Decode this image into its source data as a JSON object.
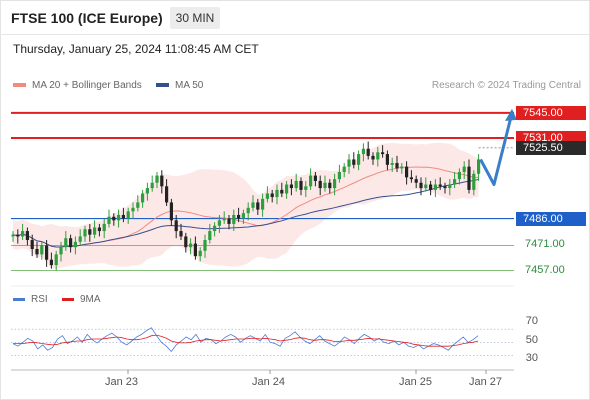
{
  "header": {
    "title": "FTSE 100 (ICE Europe)",
    "timeframe": "30 MIN",
    "datetime": "Thursday, January 25, 2024 11:08:45 AM CET"
  },
  "legend": {
    "ma_bb": "MA 20 + Bollinger Bands",
    "ma50": "MA 50",
    "credit": "Research © 2024 Trading Central"
  },
  "colors": {
    "up": "#2e9e3e",
    "down": "#222222",
    "resistance": "#e02020",
    "support": "#1f5fc8",
    "target": "#3b7ec8",
    "green_level": "#5aaa4a",
    "bb_fill": "#fde4e4",
    "ma20": "#f28a82",
    "ma50": "#34508f",
    "rsi": "#4a7cd6",
    "rsi_ma": "#e02020"
  },
  "chart_data": [
    {
      "type": "candlestick",
      "x_labels": [
        "Jan 23",
        "Jan 24",
        "Jan 25",
        "Jan 27"
      ],
      "ylim": [
        7450,
        7555
      ],
      "series": [
        {
          "name": "MA 20 + Bollinger Bands"
        },
        {
          "name": "MA 50"
        }
      ],
      "closes": [
        7477,
        7476,
        7479,
        7474,
        7469,
        7466,
        7471,
        7463,
        7460,
        7466,
        7470,
        7475,
        7470,
        7473,
        7476,
        7480,
        7477,
        7481,
        7479,
        7483,
        7487,
        7485,
        7488,
        7486,
        7490,
        7492,
        7495,
        7500,
        7503,
        7506,
        7510,
        7504,
        7495,
        7485,
        7479,
        7476,
        7470,
        7472,
        7465,
        7468,
        7474,
        7479,
        7482,
        7485,
        7486,
        7483,
        7488,
        7486,
        7489,
        7492,
        7495,
        7491,
        7497,
        7500,
        7498,
        7502,
        7500,
        7505,
        7503,
        7507,
        7502,
        7504,
        7510,
        7507,
        7503,
        7506,
        7503,
        7508,
        7512,
        7515,
        7519,
        7516,
        7522,
        7525,
        7521,
        7519,
        7523,
        7522,
        7516,
        7517,
        7514,
        7515,
        7509,
        7508,
        7506,
        7503,
        7505,
        7502,
        7505,
        7504,
        7503,
        7505,
        7508,
        7512,
        7515,
        7502,
        7511,
        7519
      ],
      "price_levels": [
        {
          "label": "7545.00",
          "value": 7545,
          "kind": "resistance"
        },
        {
          "label": "7531.00",
          "value": 7531,
          "kind": "resistance"
        },
        {
          "label": "7525.50",
          "value": 7525.5,
          "kind": "current"
        },
        {
          "label": "7486.00",
          "value": 7486,
          "kind": "support"
        },
        {
          "label": "7471.00",
          "value": 7471,
          "kind": "support-minor"
        },
        {
          "label": "7457.00",
          "value": 7457,
          "kind": "support-minor"
        }
      ],
      "projection": [
        7519,
        7505,
        7545
      ]
    },
    {
      "type": "line",
      "legend": [
        "RSI",
        "9MA"
      ],
      "y_ticks": [
        30,
        50,
        70
      ],
      "rsi": [
        48,
        44,
        50,
        56,
        52,
        40,
        46,
        38,
        42,
        55,
        60,
        48,
        52,
        58,
        50,
        62,
        54,
        49,
        55,
        60,
        64,
        58,
        50,
        46,
        52,
        58,
        62,
        68,
        72,
        60,
        50,
        44,
        36,
        46,
        52,
        58,
        54,
        62,
        50,
        56,
        54,
        48,
        52,
        58,
        62,
        58,
        50,
        56,
        60,
        56,
        52,
        62,
        50,
        48,
        44,
        56,
        60,
        66,
        58,
        52,
        48,
        54,
        60,
        52,
        48,
        44,
        50,
        58,
        54,
        48,
        56,
        62,
        58,
        52,
        56,
        50,
        48,
        52,
        46,
        50,
        44,
        42,
        46,
        40,
        44,
        48,
        46,
        42,
        38,
        46,
        52,
        58,
        50,
        54,
        60
      ],
      "rsi_ma": [
        48,
        48,
        48,
        49,
        50,
        49,
        48,
        47,
        46,
        47,
        49,
        50,
        51,
        52,
        52,
        54,
        55,
        55,
        55,
        56,
        57,
        58,
        57,
        55,
        54,
        54,
        55,
        57,
        60,
        61,
        59,
        56,
        52,
        50,
        49,
        49,
        50,
        52,
        53,
        54,
        54,
        53,
        52,
        53,
        54,
        55,
        55,
        55,
        56,
        56,
        55,
        56,
        55,
        54,
        52,
        53,
        54,
        56,
        57,
        56,
        54,
        53,
        54,
        54,
        53,
        51,
        51,
        52,
        53,
        53,
        54,
        55,
        56,
        55,
        55,
        54,
        53,
        52,
        51,
        50,
        49,
        47,
        46,
        45,
        44,
        44,
        44,
        44,
        44,
        45,
        46,
        48,
        49,
        50,
        52
      ]
    }
  ]
}
